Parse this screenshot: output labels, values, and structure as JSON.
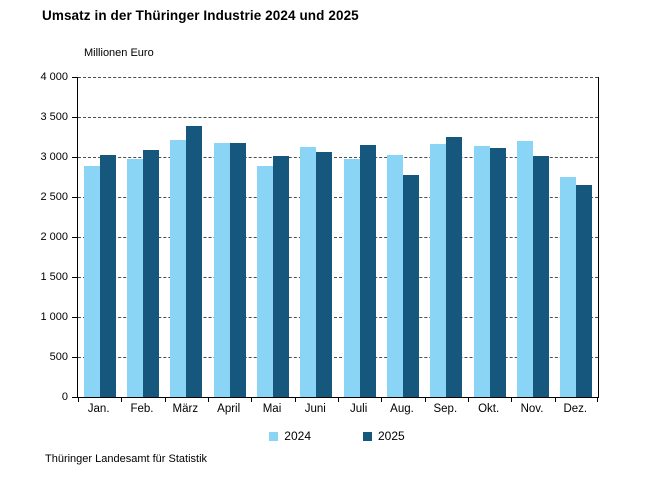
{
  "title": "Umsatz in der Thüringer Industrie 2024 und 2025",
  "y_axis_title": "Millionen Euro",
  "source_note": "Thüringer Landesamt für Statistik",
  "colors": {
    "series_2024": "#8AD5F5",
    "series_2025": "#16587D",
    "gridline": "#4d4d4d",
    "axis": "#000000"
  },
  "legend": {
    "items": [
      {
        "label": "2024",
        "color": "#8AD5F5"
      },
      {
        "label": "2025",
        "color": "#16587D"
      }
    ],
    "position": "bottom center"
  },
  "chart_data": {
    "type": "bar",
    "title": "Umsatz in der Thüringer Industrie 2024 und 2025",
    "ylabel": "Millionen Euro",
    "xlabel": "",
    "categories": [
      "Jan.",
      "Feb.",
      "März",
      "April",
      "Mai",
      "Juni",
      "Juli",
      "Aug.",
      "Sep.",
      "Okt.",
      "Nov.",
      "Dez."
    ],
    "series": [
      {
        "name": "2024",
        "color": "#8AD5F5",
        "values": [
          2890,
          2980,
          3210,
          3170,
          2890,
          3120,
          2970,
          3020,
          3160,
          3140,
          3200,
          2750
        ]
      },
      {
        "name": "2025",
        "color": "#16587D",
        "values": [
          3020,
          3090,
          3390,
          3180,
          3010,
          3060,
          3150,
          2770,
          3250,
          3110,
          3010,
          2650
        ]
      }
    ],
    "ylim": [
      0,
      4000
    ],
    "ytick_step": 500,
    "ytick_labels": [
      "4 000",
      "3 500",
      "3 000",
      "2 500",
      "2 000",
      "1 500",
      "1 000",
      "500",
      "0"
    ],
    "grid": "horizontal dashed",
    "legend_position": "bottom center"
  }
}
